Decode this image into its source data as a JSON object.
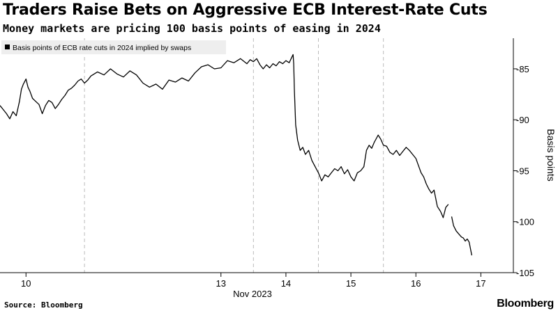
{
  "header": {
    "title": "Traders Raise Bets on Aggressive ECB Interest-Rate Cuts",
    "subtitle": "Money markets are pricing 100 basis points of easing in 2024"
  },
  "footer": {
    "source": "Source: Bloomberg",
    "brand": "Bloomberg"
  },
  "colors": {
    "line": "#000000",
    "grid": "#bbbbbb",
    "legend_bg": "#eeeeee"
  },
  "chart_data": {
    "type": "line",
    "title": "Traders Raise Bets on Aggressive ECB Interest-Rate Cuts",
    "subtitle": "Money markets are pricing 100 basis points of easing in 2024",
    "xlabel": "Nov 2023",
    "ylabel": "Basis points",
    "y_axis_position": "right",
    "y_inverted": true,
    "ylim": [
      -105,
      -82
    ],
    "yticks": [
      -85,
      -90,
      -95,
      -100,
      -105
    ],
    "ytick_labels": [
      "-85",
      "-90",
      "-95",
      "-100",
      "-105"
    ],
    "xlim": [
      9.6,
      17.5
    ],
    "xticks": [
      10,
      13,
      14,
      15,
      16,
      17
    ],
    "xtick_labels": [
      "10",
      "13",
      "14",
      "15",
      "16",
      "17"
    ],
    "session_breaks": [
      10.9,
      13.5,
      14.5,
      15.5
    ],
    "legend": {
      "placement": "top-left",
      "entries": [
        "Basis points of ECB rate cuts in 2024 implied by swaps"
      ]
    },
    "grid": false,
    "series": [
      {
        "name": "Basis points of ECB rate cuts in 2024 implied by swaps",
        "segments": [
          [
            [
              9.6,
              -88.6
            ],
            [
              9.65,
              -89.0
            ],
            [
              9.7,
              -89.4
            ],
            [
              9.75,
              -89.9
            ],
            [
              9.8,
              -89.2
            ],
            [
              9.85,
              -89.6
            ],
            [
              9.9,
              -88.2
            ],
            [
              9.93,
              -87.0
            ],
            [
              9.96,
              -86.5
            ],
            [
              10.0,
              -86.0
            ],
            [
              10.03,
              -86.8
            ],
            [
              10.06,
              -87.2
            ],
            [
              10.1,
              -87.9
            ],
            [
              10.15,
              -88.2
            ],
            [
              10.2,
              -88.5
            ],
            [
              10.25,
              -89.4
            ],
            [
              10.3,
              -88.6
            ],
            [
              10.35,
              -88.1
            ],
            [
              10.4,
              -88.3
            ],
            [
              10.45,
              -88.9
            ],
            [
              10.5,
              -88.5
            ],
            [
              10.55,
              -88.0
            ],
            [
              10.6,
              -87.6
            ],
            [
              10.65,
              -87.1
            ],
            [
              10.7,
              -86.9
            ],
            [
              10.75,
              -86.6
            ],
            [
              10.8,
              -86.2
            ],
            [
              10.85,
              -86.0
            ],
            [
              10.9,
              -86.4
            ],
            [
              10.95,
              -86.1
            ],
            [
              11.0,
              -85.7
            ],
            [
              11.1,
              -85.3
            ],
            [
              11.2,
              -85.6
            ],
            [
              11.3,
              -85.0
            ],
            [
              11.4,
              -85.5
            ],
            [
              11.5,
              -85.8
            ],
            [
              11.6,
              -85.2
            ],
            [
              11.7,
              -85.6
            ],
            [
              11.8,
              -86.4
            ],
            [
              11.9,
              -86.8
            ],
            [
              12.0,
              -86.5
            ],
            [
              12.1,
              -87.0
            ],
            [
              12.2,
              -86.1
            ],
            [
              12.3,
              -86.3
            ],
            [
              12.4,
              -85.9
            ],
            [
              12.5,
              -86.2
            ],
            [
              12.6,
              -85.4
            ],
            [
              12.7,
              -84.8
            ],
            [
              12.8,
              -84.6
            ],
            [
              12.9,
              -85.0
            ],
            [
              13.0,
              -84.9
            ],
            [
              13.1,
              -84.2
            ],
            [
              13.2,
              -84.4
            ],
            [
              13.3,
              -84.0
            ],
            [
              13.4,
              -84.5
            ],
            [
              13.45,
              -84.1
            ],
            [
              13.5,
              -84.3
            ],
            [
              13.55,
              -84.0
            ],
            [
              13.6,
              -84.6
            ],
            [
              13.65,
              -85.0
            ],
            [
              13.7,
              -84.6
            ],
            [
              13.75,
              -84.9
            ],
            [
              13.8,
              -84.5
            ],
            [
              13.85,
              -84.7
            ],
            [
              13.9,
              -84.3
            ],
            [
              13.95,
              -84.5
            ],
            [
              14.0,
              -84.2
            ],
            [
              14.05,
              -84.4
            ],
            [
              14.08,
              -84.0
            ],
            [
              14.11,
              -83.6
            ],
            [
              14.12,
              -84.5
            ],
            [
              14.13,
              -87.0
            ],
            [
              14.15,
              -90.5
            ],
            [
              14.18,
              -92.0
            ],
            [
              14.22,
              -93.0
            ],
            [
              14.26,
              -92.7
            ],
            [
              14.3,
              -93.4
            ],
            [
              14.35,
              -93.0
            ],
            [
              14.4,
              -94.0
            ],
            [
              14.45,
              -94.6
            ],
            [
              14.5,
              -95.2
            ],
            [
              14.55,
              -96.0
            ],
            [
              14.6,
              -95.4
            ],
            [
              14.65,
              -95.6
            ],
            [
              14.7,
              -95.2
            ],
            [
              14.75,
              -94.8
            ],
            [
              14.8,
              -95.0
            ],
            [
              14.85,
              -94.6
            ],
            [
              14.9,
              -95.3
            ],
            [
              14.95,
              -94.9
            ],
            [
              15.0,
              -95.6
            ],
            [
              15.05,
              -96.0
            ],
            [
              15.1,
              -95.2
            ],
            [
              15.15,
              -95.0
            ],
            [
              15.2,
              -94.6
            ],
            [
              15.24,
              -93.0
            ],
            [
              15.28,
              -92.5
            ],
            [
              15.32,
              -92.8
            ],
            [
              15.36,
              -92.2
            ],
            [
              15.42,
              -91.5
            ],
            [
              15.46,
              -91.9
            ],
            [
              15.5,
              -92.5
            ],
            [
              15.55,
              -92.6
            ],
            [
              15.6,
              -93.2
            ],
            [
              15.65,
              -93.4
            ],
            [
              15.7,
              -93.0
            ],
            [
              15.75,
              -93.5
            ],
            [
              15.8,
              -93.1
            ],
            [
              15.85,
              -92.7
            ],
            [
              15.9,
              -93.0
            ],
            [
              15.95,
              -93.4
            ],
            [
              16.0,
              -93.8
            ],
            [
              16.04,
              -94.5
            ],
            [
              16.08,
              -95.2
            ],
            [
              16.12,
              -95.6
            ],
            [
              16.16,
              -96.3
            ],
            [
              16.2,
              -96.8
            ],
            [
              16.24,
              -97.2
            ],
            [
              16.28,
              -96.9
            ],
            [
              16.33,
              -98.5
            ],
            [
              16.38,
              -99.0
            ],
            [
              16.42,
              -99.6
            ],
            [
              16.46,
              -98.6
            ],
            [
              16.5,
              -98.3
            ]
          ],
          [
            [
              16.55,
              -99.5
            ],
            [
              16.58,
              -100.4
            ],
            [
              16.62,
              -100.9
            ],
            [
              16.66,
              -101.2
            ],
            [
              16.7,
              -101.5
            ],
            [
              16.73,
              -101.6
            ],
            [
              16.76,
              -101.9
            ],
            [
              16.79,
              -101.7
            ],
            [
              16.82,
              -102.0
            ],
            [
              16.86,
              -103.3
            ]
          ]
        ]
      }
    ]
  }
}
